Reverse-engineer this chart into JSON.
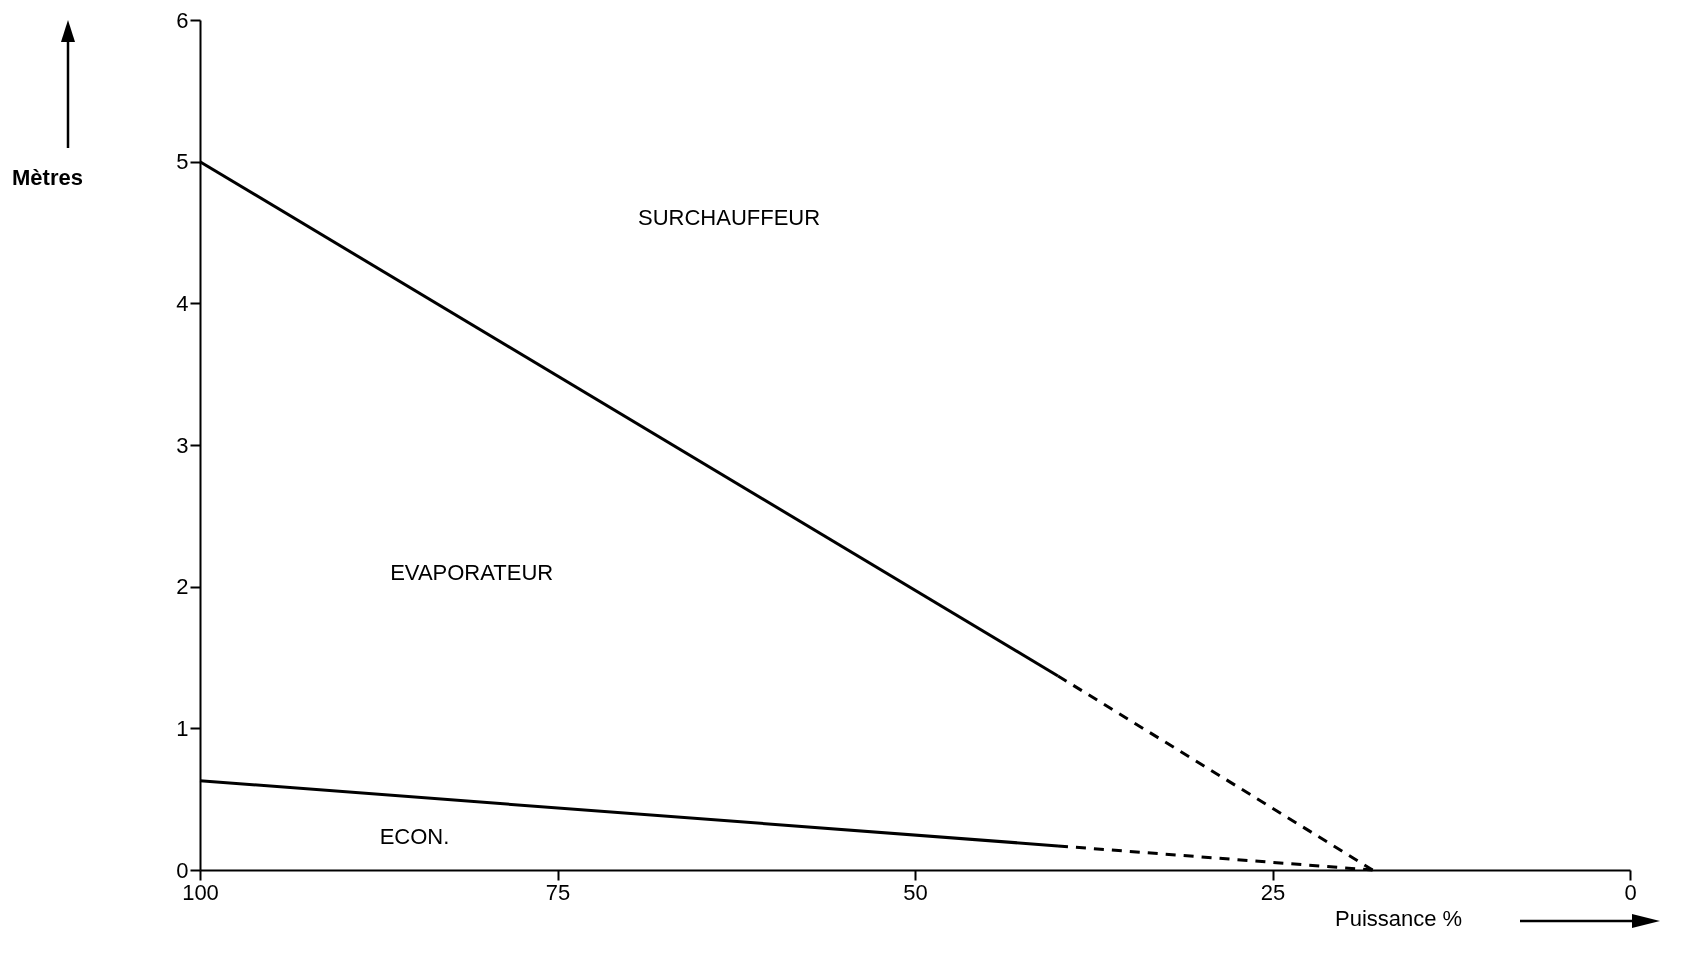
{
  "chart_data": {
    "type": "line",
    "xlabel": "Puissance %",
    "ylabel": "Mètres",
    "xlim": [
      100,
      0
    ],
    "xticks": [
      100,
      75,
      50,
      25,
      0
    ],
    "ylim": [
      0,
      6
    ],
    "yticks": [
      0,
      1,
      2,
      3,
      4,
      5,
      6
    ],
    "grid": false,
    "series": [
      {
        "color": "#000000",
        "line_style": "solid",
        "x": [
          100,
          40
        ],
        "values": [
          5,
          1.37
        ]
      },
      {
        "color": "#000000",
        "line_style": "dashed",
        "x": [
          40,
          18
        ],
        "values": [
          1.37,
          0
        ]
      },
      {
        "color": "#000000",
        "line_style": "solid",
        "x": [
          100,
          40
        ],
        "values": [
          0.63,
          0.17
        ]
      },
      {
        "color": "#000000",
        "line_style": "dashed",
        "x": [
          40,
          18
        ],
        "values": [
          0.17,
          0
        ]
      }
    ],
    "annotations": [
      "SURCHAUFFEUR",
      "EVAPORATEUR",
      "ECON."
    ]
  }
}
